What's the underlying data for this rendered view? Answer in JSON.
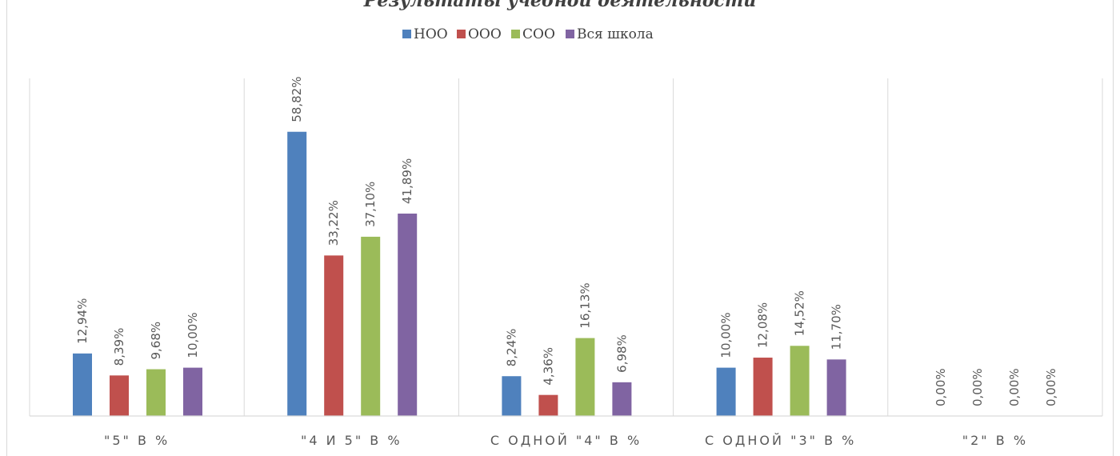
{
  "chart_data": {
    "type": "bar",
    "title": "Результаты учебной деятельности",
    "categories": [
      "\"5\" в %",
      "\"4 и 5\" в %",
      "с одной \"4\" в %",
      "с одной \"3\" в %",
      "\"2\" в %"
    ],
    "series": [
      {
        "name": "НОО",
        "color": "#4f81bd",
        "values": [
          12.94,
          58.82,
          8.24,
          10.0,
          0.0
        ],
        "labels": [
          "12,94%",
          "58,82%",
          "8,24%",
          "10,00%",
          "0,00%"
        ]
      },
      {
        "name": "ООО",
        "color": "#c0504d",
        "values": [
          8.39,
          33.22,
          4.36,
          12.08,
          0.0
        ],
        "labels": [
          "8,39%",
          "33,22%",
          "4,36%",
          "12,08%",
          "0,00%"
        ]
      },
      {
        "name": "СОО",
        "color": "#9bbb59",
        "values": [
          9.68,
          37.1,
          16.13,
          14.52,
          0.0
        ],
        "labels": [
          "9,68%",
          "37,10%",
          "16,13%",
          "14,52%",
          "0,00%"
        ]
      },
      {
        "name": "Вся школа",
        "color": "#8064a2",
        "values": [
          10.0,
          41.89,
          6.98,
          11.7,
          0.0
        ],
        "labels": [
          "10,00%",
          "41,89%",
          "6,98%",
          "11,70%",
          "0,00%"
        ]
      }
    ],
    "ylim": [
      0,
      70
    ],
    "legend_position": "top",
    "grid": "vertical category separators",
    "xlabel": "",
    "ylabel": ""
  }
}
